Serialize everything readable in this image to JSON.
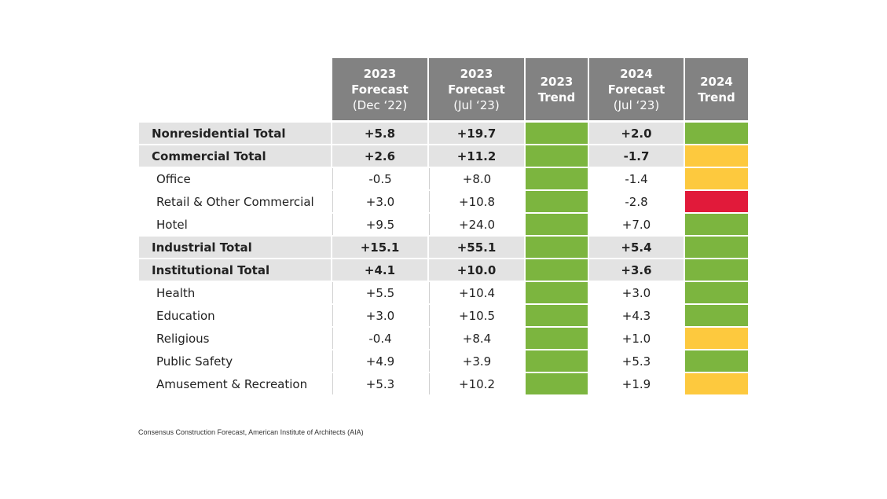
{
  "table": {
    "columns": [
      {
        "lines": [
          "2023",
          "Forecast",
          "(Dec ‘22)"
        ]
      },
      {
        "lines": [
          "2023",
          "Forecast",
          "(Jul ‘23)"
        ]
      },
      {
        "lines": [
          "2023",
          "Trend"
        ]
      },
      {
        "lines": [
          "2024",
          "Forecast",
          "(Jul ‘23)"
        ]
      },
      {
        "lines": [
          "2024",
          "Trend"
        ]
      }
    ],
    "trend_colors": {
      "green": "#7cb53f",
      "yellow": "#fdc93e",
      "red": "#e11a3a"
    },
    "rows": [
      {
        "label": "Nonresidential Total",
        "total": true,
        "cells": [
          "+5.8",
          "+19.7",
          "green",
          "+2.0",
          "green"
        ]
      },
      {
        "label": "Commercial Total",
        "total": true,
        "cells": [
          "+2.6",
          "+11.2",
          "green",
          "-1.7",
          "yellow"
        ]
      },
      {
        "label": "Office",
        "total": false,
        "cells": [
          "-0.5",
          "+8.0",
          "green",
          "-1.4",
          "yellow"
        ]
      },
      {
        "label": "Retail & Other Commercial",
        "total": false,
        "cells": [
          "+3.0",
          "+10.8",
          "green",
          "-2.8",
          "red"
        ]
      },
      {
        "label": "Hotel",
        "total": false,
        "cells": [
          "+9.5",
          "+24.0",
          "green",
          "+7.0",
          "green"
        ]
      },
      {
        "label": "Industrial Total",
        "total": true,
        "cells": [
          "+15.1",
          "+55.1",
          "green",
          "+5.4",
          "green"
        ]
      },
      {
        "label": "Institutional Total",
        "total": true,
        "cells": [
          "+4.1",
          "+10.0",
          "green",
          "+3.6",
          "green"
        ]
      },
      {
        "label": "Health",
        "total": false,
        "cells": [
          "+5.5",
          "+10.4",
          "green",
          "+3.0",
          "green"
        ]
      },
      {
        "label": "Education",
        "total": false,
        "cells": [
          "+3.0",
          "+10.5",
          "green",
          "+4.3",
          "green"
        ]
      },
      {
        "label": "Religious",
        "total": false,
        "cells": [
          "-0.4",
          "+8.4",
          "green",
          "+1.0",
          "yellow"
        ]
      },
      {
        "label": "Public Safety",
        "total": false,
        "cells": [
          "+4.9",
          "+3.9",
          "green",
          "+5.3",
          "green"
        ]
      },
      {
        "label": "Amusement & Recreation",
        "total": false,
        "cells": [
          "+5.3",
          "+10.2",
          "green",
          "+1.9",
          "yellow"
        ]
      }
    ]
  },
  "footer": {
    "source": "Consensus Construction Forecast, American Institute of Architects (AIA)"
  }
}
